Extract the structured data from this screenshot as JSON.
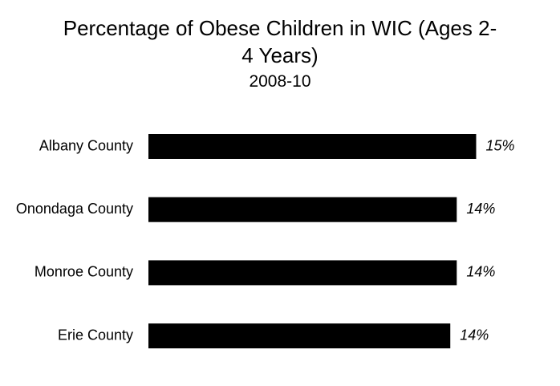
{
  "chart_data": {
    "type": "bar",
    "orientation": "horizontal",
    "title_line1": "Percentage of Obese Children in WIC (Ages 2-",
    "title_line2": "4 Years)",
    "subtitle": "2008-10",
    "categories": [
      "Albany County",
      "Onondaga County",
      "Monroe County",
      "Erie County"
    ],
    "values": [
      15.2,
      14.3,
      14.3,
      14.0
    ],
    "data_labels": [
      "15%",
      "14%",
      "14%",
      "14%"
    ],
    "xlim": [
      0,
      16
    ],
    "grid": false,
    "legend": "none",
    "bar_color": "#000000"
  }
}
